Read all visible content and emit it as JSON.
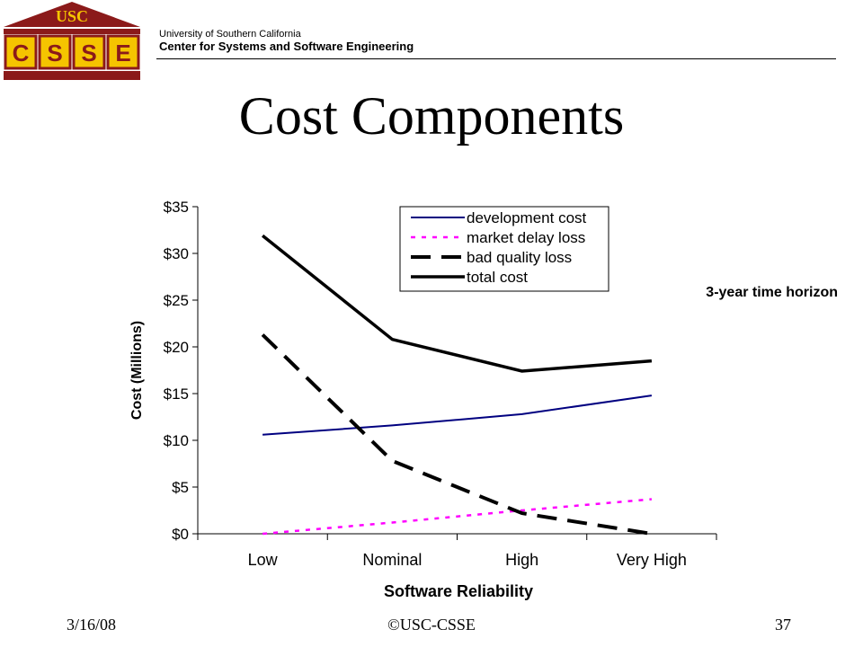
{
  "header": {
    "logo_top_text": "USC",
    "logo_letters": [
      "C",
      "S",
      "S",
      "E"
    ],
    "university": "University of Southern California",
    "center": "Center for Systems and Software Engineering"
  },
  "slide": {
    "title": "Cost Components"
  },
  "chart_data": {
    "type": "line",
    "categories": [
      "Low",
      "Nominal",
      "High",
      "Very High"
    ],
    "xlabel": "Software Reliability",
    "ylabel": "Cost (Millions)",
    "ylim": [
      0,
      35
    ],
    "yticks": [
      "$0",
      "$5",
      "$10",
      "$15",
      "$20",
      "$25",
      "$30",
      "$35"
    ],
    "annotation": "3-year time horizon",
    "legend_position": "top-center",
    "grid": false,
    "series": [
      {
        "name": "development cost",
        "values": [
          10.6,
          11.6,
          12.8,
          14.8
        ],
        "color": "#000080",
        "style": "solid"
      },
      {
        "name": "market delay loss",
        "values": [
          0,
          1.2,
          2.5,
          3.7
        ],
        "color": "#ff00ff",
        "style": "dotted"
      },
      {
        "name": "bad quality loss",
        "values": [
          21.3,
          7.8,
          2.2,
          0
        ],
        "color": "#000000",
        "style": "dashed"
      },
      {
        "name": "total cost",
        "values": [
          31.9,
          20.8,
          17.4,
          18.5
        ],
        "color": "#000000",
        "style": "thick"
      }
    ]
  },
  "footer": {
    "date": "3/16/08",
    "copyright": "©USC-CSSE",
    "page": "37"
  }
}
